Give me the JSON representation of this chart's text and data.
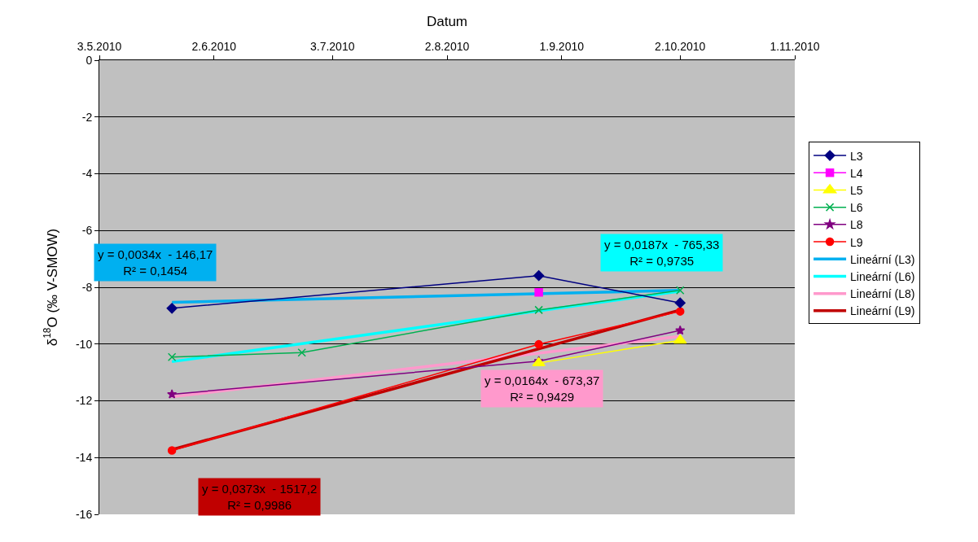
{
  "chart_data": {
    "type": "line",
    "xlabel": "Datum",
    "ylabel": "δ$^{18}$O (‰ V-SMOW)",
    "xlim": [
      "2010-05-03",
      "2010-11-01"
    ],
    "xticks": [
      {
        "value": "2010-05-03",
        "label": "3.5.2010"
      },
      {
        "value": "2010-06-02",
        "label": "2.6.2010"
      },
      {
        "value": "2010-07-03",
        "label": "3.7.2010"
      },
      {
        "value": "2010-08-02",
        "label": "2.8.2010"
      },
      {
        "value": "2010-09-01",
        "label": "1.9.2010"
      },
      {
        "value": "2010-10-02",
        "label": "2.10.2010"
      },
      {
        "value": "2010-11-01",
        "label": "1.11.2010"
      }
    ],
    "ylim": [
      -16,
      0
    ],
    "yticks": [
      0,
      -2,
      -4,
      -6,
      -8,
      -10,
      -12,
      -14,
      -16
    ],
    "grid": "y",
    "legend": "right",
    "series": [
      {
        "name": "L3",
        "color": "#000080",
        "marker": "diamond",
        "x": [
          "2010-05-22",
          "2010-08-26",
          "2010-10-02"
        ],
        "values": [
          -8.74,
          -7.59,
          -8.55
        ]
      },
      {
        "name": "L4",
        "color": "#ff00ff",
        "marker": "square",
        "x": [
          "2010-08-26"
        ],
        "values": [
          -8.18
        ]
      },
      {
        "name": "L5",
        "color": "#ffff00",
        "marker": "triangle",
        "x": [
          "2010-08-26",
          "2010-10-02"
        ],
        "values": [
          -10.67,
          -9.87
        ]
      },
      {
        "name": "L6",
        "color": "#00b050",
        "marker": "cross",
        "x": [
          "2010-05-22",
          "2010-06-25",
          "2010-08-26",
          "2010-10-02"
        ],
        "values": [
          -10.46,
          -10.3,
          -8.8,
          -8.11
        ]
      },
      {
        "name": "L8",
        "color": "#800080",
        "marker": "star",
        "x": [
          "2010-05-22",
          "2010-08-26",
          "2010-10-02"
        ],
        "values": [
          -11.77,
          -10.6,
          -9.52
        ]
      },
      {
        "name": "L9",
        "color": "#ff0000",
        "marker": "circle",
        "x": [
          "2010-05-22",
          "2010-08-26",
          "2010-10-02"
        ],
        "values": [
          -13.75,
          -10.01,
          -8.85
        ]
      },
      {
        "name": "Lineární (L3)",
        "color": "#00b0f0",
        "marker": "none",
        "x": [
          "2010-05-22",
          "2010-10-02"
        ],
        "values": [
          -8.53,
          -8.11
        ]
      },
      {
        "name": "Lineární (L6)",
        "color": "#00ffff",
        "marker": "none",
        "x": [
          "2010-05-22",
          "2010-10-02"
        ],
        "values": [
          -10.62,
          -8.14
        ]
      },
      {
        "name": "Lineární (L8)",
        "color": "#ff99cc",
        "marker": "none",
        "x": [
          "2010-05-22",
          "2010-10-02"
        ],
        "values": [
          -11.86,
          -9.73
        ]
      },
      {
        "name": "Lineární (L9)",
        "color": "#c00000",
        "marker": "none",
        "x": [
          "2010-05-22",
          "2010-10-02"
        ],
        "values": [
          -13.72,
          -8.8
        ]
      }
    ],
    "annotations": [
      "y = 0,0034x  - 146,17\nR² = 0,1454",
      "y = 0,0187x  - 765,33\nR² = 0,9735",
      "y = 0,0164x  - 673,37\nR² = 0,9429",
      "y = 0,0373x  - 1517,2\nR² = 0,9986"
    ]
  }
}
